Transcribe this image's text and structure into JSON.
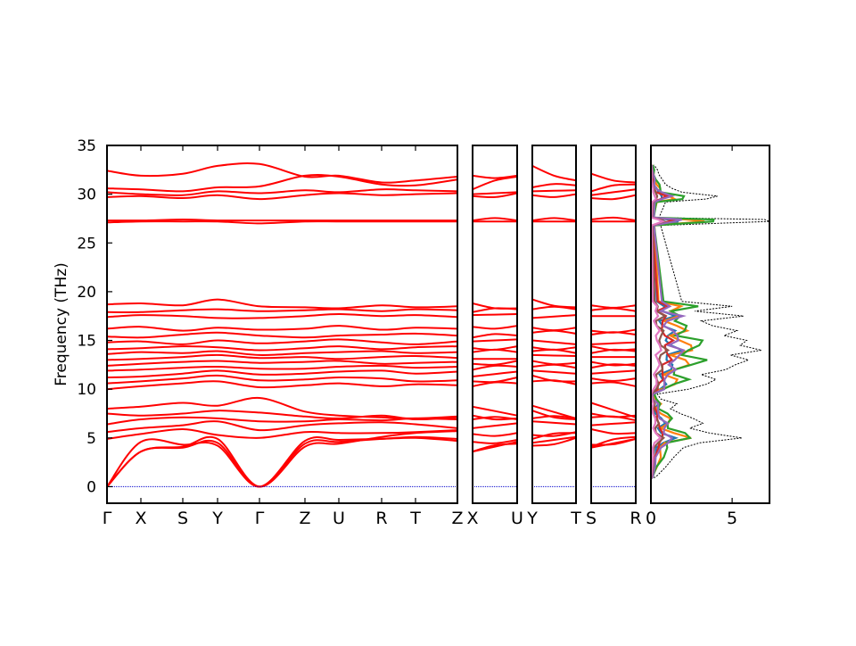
{
  "chart_data": {
    "type": "line",
    "ylabel": "Frequency (THz)",
    "ylim": [
      -1.7,
      35
    ],
    "yticks": [
      0,
      5,
      10,
      15,
      20,
      25,
      30,
      35
    ],
    "colors": {
      "bands": "#ff0000",
      "zero_line": "#0000cc",
      "dos_total": "#000000"
    },
    "panels": [
      {
        "id": "main",
        "path": [
          "Γ",
          "X",
          "S",
          "Y",
          "Γ",
          "Z",
          "U",
          "R",
          "T",
          "Z"
        ],
        "tick_labels": [
          "Γ",
          "X",
          "S",
          "Y",
          "Γ",
          "Z",
          "U",
          "R",
          "T",
          "Z"
        ]
      },
      {
        "id": "p2",
        "path": [
          "X",
          "U"
        ],
        "tick_labels": [
          "X",
          "U"
        ]
      },
      {
        "id": "p3",
        "path": [
          "Y",
          "T"
        ],
        "tick_labels": [
          "Y",
          "T"
        ]
      },
      {
        "id": "p4",
        "path": [
          "S",
          "R"
        ],
        "tick_labels": [
          "S",
          "R"
        ]
      }
    ],
    "bands_at_high_symmetry": {
      "labels": [
        "Γ",
        "X",
        "S",
        "Y",
        "Γ",
        "Z",
        "U",
        "R",
        "T",
        "Z"
      ],
      "groups": [
        {
          "name": "acoustic",
          "values": [
            [
              0,
              4.6,
              4.3,
              4.2,
              0,
              4.7,
              4.8,
              4.9,
              5.0,
              4.7
            ],
            [
              0,
              3.6,
              4.0,
              4.5,
              0,
              4.4,
              4.6,
              4.9,
              5.1,
              4.9
            ],
            [
              0,
              3.6,
              4.1,
              4.9,
              0,
              4.1,
              4.4,
              5.1,
              5.5,
              5.7
            ]
          ]
        },
        {
          "name": "low-optical",
          "values": [
            [
              4.9,
              5.4,
              5.9,
              5.3,
              5.0,
              5.6,
              5.5,
              5.5,
              5.6,
              5.8
            ],
            [
              5.6,
              6.0,
              6.3,
              6.7,
              5.8,
              6.3,
              6.5,
              6.6,
              6.4,
              6.0
            ],
            [
              6.4,
              6.9,
              7.1,
              7.0,
              6.7,
              6.7,
              6.9,
              6.8,
              7.0,
              6.9
            ],
            [
              7.5,
              7.3,
              7.5,
              7.8,
              7.6,
              7.2,
              7.0,
              7.3,
              6.9,
              7.1
            ],
            [
              8.0,
              8.2,
              8.6,
              8.3,
              9.1,
              7.7,
              7.3,
              7.1,
              7.0,
              7.2
            ]
          ]
        },
        {
          "name": "mid-optical",
          "values": [
            [
              10.0,
              10.3,
              10.6,
              10.8,
              10.2,
              10.4,
              10.6,
              10.3,
              10.5,
              10.4
            ],
            [
              10.6,
              10.8,
              11.1,
              11.4,
              10.9,
              11.0,
              11.2,
              11.1,
              10.8,
              10.9
            ],
            [
              11.2,
              11.3,
              11.6,
              11.9,
              11.5,
              11.6,
              11.8,
              11.9,
              11.6,
              11.8
            ],
            [
              11.9,
              12.0,
              12.2,
              12.3,
              12.1,
              12.1,
              12.3,
              12.4,
              12.2,
              12.3
            ],
            [
              12.4,
              12.6,
              12.8,
              12.9,
              12.7,
              12.8,
              12.9,
              12.6,
              12.7,
              12.8
            ],
            [
              13.0,
              13.1,
              13.3,
              13.5,
              13.2,
              13.3,
              13.1,
              13.3,
              13.4,
              13.2
            ],
            [
              13.6,
              13.8,
              13.7,
              13.9,
              13.5,
              13.7,
              13.8,
              13.9,
              13.7,
              13.8
            ],
            [
              14.1,
              14.2,
              14.4,
              14.3,
              14.0,
              14.2,
              14.4,
              14.1,
              14.3,
              14.4
            ],
            [
              14.8,
              14.9,
              14.6,
              15.0,
              14.7,
              14.9,
              15.1,
              14.8,
              14.6,
              14.9
            ],
            [
              15.4,
              15.3,
              15.6,
              15.8,
              15.5,
              15.3,
              15.5,
              15.6,
              15.7,
              15.5
            ],
            [
              16.2,
              16.4,
              16.0,
              16.3,
              16.1,
              16.2,
              16.5,
              16.1,
              16.3,
              16.2
            ],
            [
              17.4,
              17.6,
              17.5,
              17.3,
              17.3,
              17.5,
              17.7,
              17.5,
              17.6,
              17.4
            ],
            [
              17.9,
              17.9,
              18.1,
              18.2,
              18.0,
              18.1,
              18.2,
              18.0,
              18.2,
              18.1
            ],
            [
              18.7,
              18.8,
              18.6,
              19.2,
              18.5,
              18.4,
              18.3,
              18.6,
              18.4,
              18.5
            ]
          ]
        },
        {
          "name": "high-optical",
          "values": [
            [
              27.1,
              27.2,
              27.2,
              27.2,
              27.0,
              27.2,
              27.2,
              27.2,
              27.2,
              27.2
            ],
            [
              27.3,
              27.3,
              27.4,
              27.3,
              27.3,
              27.3,
              27.3,
              27.3,
              27.3,
              27.3
            ],
            [
              29.7,
              29.8,
              29.6,
              29.9,
              29.5,
              29.9,
              30.1,
              29.9,
              30.0,
              30.1
            ],
            [
              30.2,
              30.0,
              29.9,
              30.3,
              30.1,
              30.4,
              30.2,
              30.5,
              30.4,
              30.3
            ],
            [
              30.6,
              30.5,
              30.3,
              30.7,
              30.8,
              31.9,
              31.8,
              31.0,
              30.9,
              31.5
            ],
            [
              32.4,
              31.9,
              32.1,
              32.9,
              33.1,
              31.8,
              31.9,
              31.2,
              31.4,
              31.8
            ]
          ]
        }
      ]
    },
    "dos": {
      "xlim": [
        0,
        7.3
      ],
      "xticks": [
        0,
        5
      ],
      "series_colors": [
        "#1f77b4",
        "#ff7f0e",
        "#2ca02c",
        "#d62728",
        "#9467bd",
        "#8c564b",
        "#e377c2",
        "#000000"
      ],
      "total": {
        "freq": [
          1,
          2,
          3,
          4,
          4.5,
          5,
          5.5,
          6,
          6.5,
          7,
          7.5,
          8,
          8.5,
          9,
          9.5,
          10,
          10.5,
          11,
          11.5,
          12,
          12.5,
          13,
          13.5,
          14,
          14.5,
          15,
          15.5,
          16,
          16.5,
          17,
          17.5,
          18,
          18.5,
          19,
          26.8,
          27.2,
          27.4,
          27.6,
          29.2,
          29.5,
          29.8,
          30.2,
          30.6,
          31,
          31.5,
          32,
          32.5,
          33
        ],
        "value": [
          0.3,
          0.9,
          1.4,
          2.0,
          3.0,
          5.6,
          3.6,
          2.4,
          3.2,
          2.6,
          1.8,
          1.2,
          1.6,
          0.6,
          0.4,
          2.3,
          3.4,
          4.0,
          3.1,
          4.6,
          5.2,
          6.0,
          4.9,
          6.8,
          5.5,
          5.9,
          4.5,
          5.3,
          3.8,
          3.1,
          5.7,
          2.7,
          5.0,
          1.9,
          0.6,
          7.3,
          7.0,
          0.5,
          0.9,
          3.4,
          4.1,
          1.9,
          1.3,
          0.9,
          0.7,
          0.5,
          0.4,
          0.2
        ]
      }
    }
  }
}
